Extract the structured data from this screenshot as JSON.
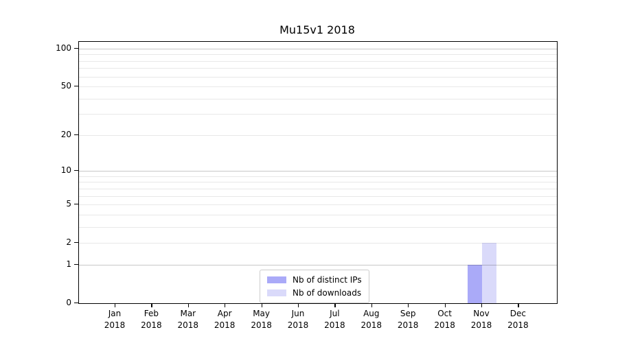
{
  "chart_data": {
    "type": "bar",
    "title": "Mu15v1 2018",
    "categories": [
      "Jan 2018",
      "Feb 2018",
      "Mar 2018",
      "Apr 2018",
      "May 2018",
      "Jun 2018",
      "Jul 2018",
      "Aug 2018",
      "Sep 2018",
      "Oct 2018",
      "Nov 2018",
      "Dec 2018"
    ],
    "series": [
      {
        "name": "Nb of distinct IPs",
        "color": "#aaaaf8",
        "values": [
          0,
          0,
          0,
          0,
          0,
          0,
          0,
          0,
          0,
          0,
          1,
          0
        ]
      },
      {
        "name": "Nb of downloads",
        "color": "#dadafa",
        "values": [
          0,
          0,
          0,
          0,
          0,
          0,
          0,
          0,
          0,
          0,
          2,
          0
        ]
      }
    ],
    "xlabel": "",
    "ylabel": "",
    "ylim": [
      0,
      115
    ],
    "yscale": "log1p",
    "yticks_labeled": [
      0,
      1,
      2,
      5,
      10,
      20,
      50,
      100
    ],
    "ygrid_major": [
      1,
      10,
      100
    ],
    "ygrid_light": [
      2,
      5,
      20,
      50
    ],
    "ygrid_minor": [
      3,
      4,
      6,
      7,
      8,
      9,
      30,
      40,
      60,
      70,
      80,
      90
    ],
    "grid": true,
    "legend_position": "lower center"
  },
  "colors": {
    "grid_major": "rgba(0,0,0,0.22)",
    "grid_minor": "rgba(0,0,0,0.09)",
    "axis": "#000000",
    "background": "#ffffff"
  }
}
